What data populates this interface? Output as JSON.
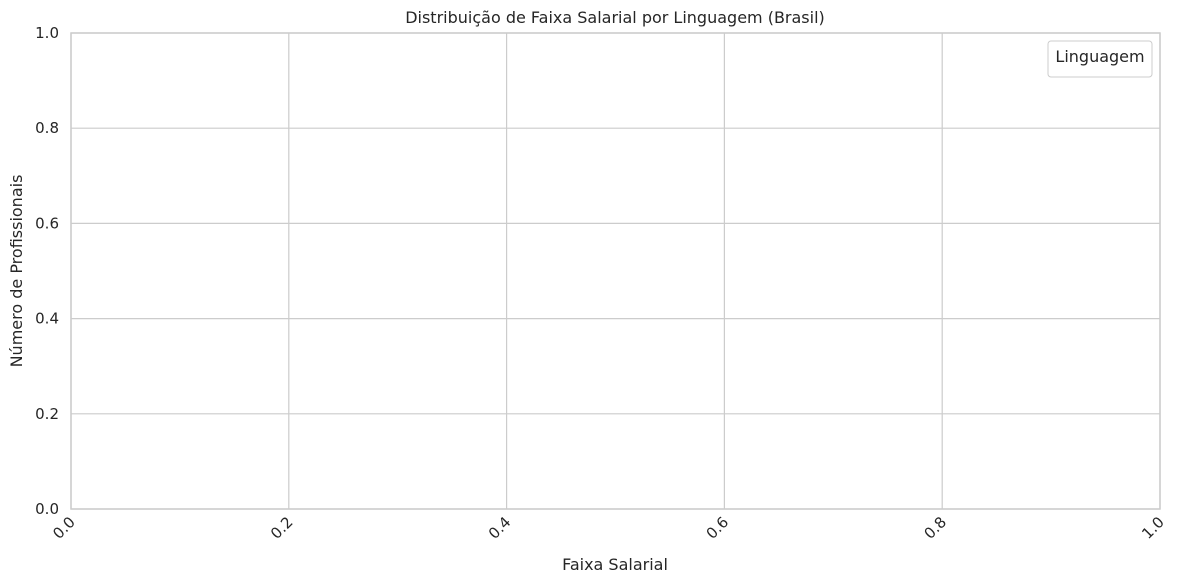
{
  "chart_data": {
    "type": "bar",
    "title": "Distribuição de Faixa Salarial por Linguagem (Brasil)",
    "xlabel": "Faixa Salarial",
    "ylabel": "Número de Profissionais",
    "xlim": [
      0,
      1
    ],
    "ylim": [
      0,
      1
    ],
    "x_ticks": [
      "0.0",
      "0.2",
      "0.4",
      "0.6",
      "0.8",
      "1.0"
    ],
    "y_ticks": [
      "0.0",
      "0.2",
      "0.4",
      "0.6",
      "0.8",
      "1.0"
    ],
    "x_tick_rotation": 45,
    "grid": true,
    "legend": {
      "title": "Linguagem",
      "placement": "top-right",
      "entries": []
    },
    "series": [],
    "colors": {
      "grid": "#cccccc",
      "spine": "#cccccc",
      "text": "#262626",
      "background": "#ffffff"
    }
  }
}
